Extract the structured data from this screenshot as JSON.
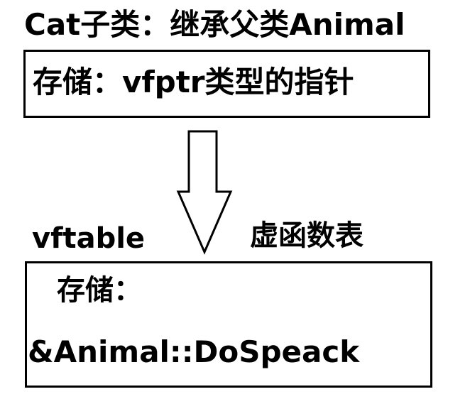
{
  "title": "Cat子类：继承父类Animal",
  "object_box": {
    "text": "存储：vfptr类型的指针"
  },
  "vftable_label": "vftable",
  "vftable_cn_label": "虚函数表",
  "vftable_box": {
    "line1": "存储：",
    "line2": "&Animal::DoSpeack"
  },
  "colors": {
    "stroke": "#000000",
    "background": "#ffffff"
  }
}
